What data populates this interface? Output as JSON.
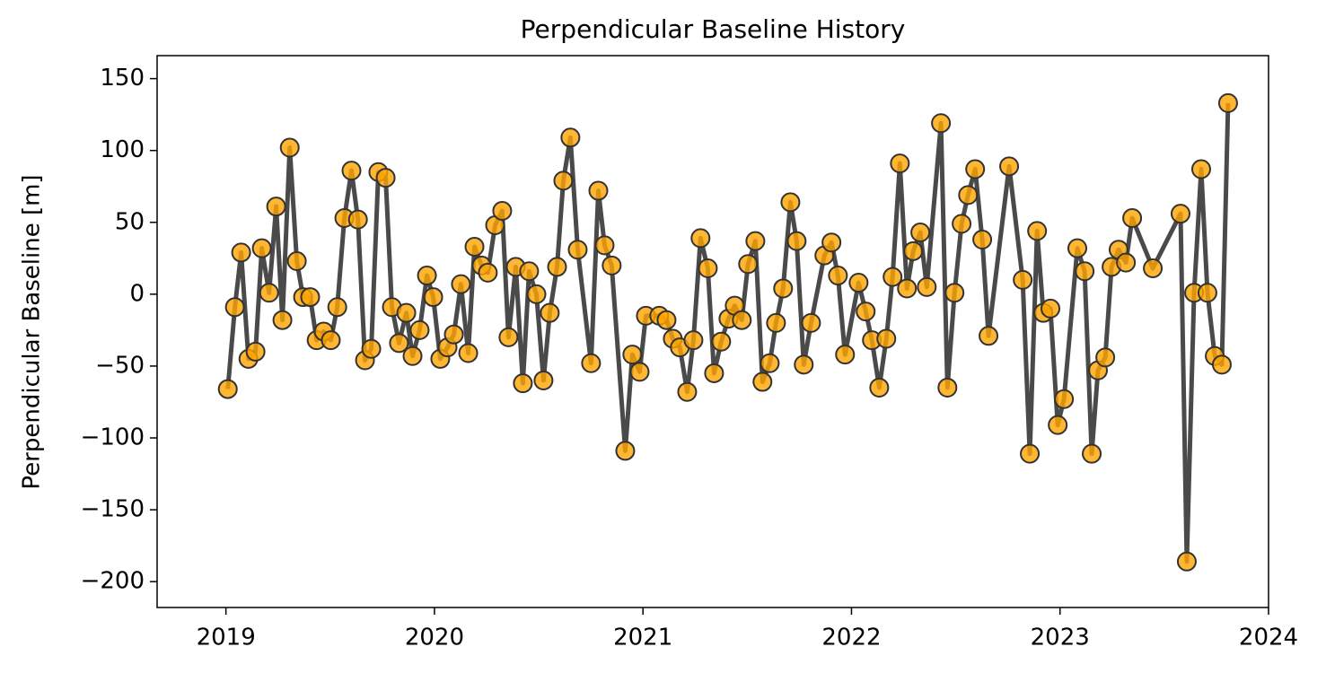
{
  "chart_data": {
    "type": "line",
    "title": "Perpendicular Baseline History",
    "ylabel": "Perpendicular Baseline [m]",
    "color": "#ffa500",
    "line_color": "#404040",
    "xlim": [
      2018.67,
      2024
    ],
    "xticks": [
      2019,
      2020,
      2021,
      2022,
      2023,
      2024
    ],
    "ylim": [
      -218,
      166
    ],
    "yticks": [
      {
        "value": -200,
        "label": "−200"
      },
      {
        "value": -150,
        "label": "−150"
      },
      {
        "value": -100,
        "label": "−100"
      },
      {
        "value": -50,
        "label": "−50"
      },
      0,
      50,
      100,
      150
    ],
    "x": [
      2019.009,
      2019.043,
      2019.073,
      2019.108,
      2019.142,
      2019.172,
      2019.207,
      2019.241,
      2019.271,
      2019.306,
      2019.34,
      2019.37,
      2019.404,
      2019.435,
      2019.469,
      2019.503,
      2019.534,
      2019.568,
      2019.602,
      2019.633,
      2019.667,
      2019.697,
      2019.731,
      2019.766,
      2019.796,
      2019.83,
      2019.865,
      2019.895,
      2019.929,
      2019.964,
      2019.994,
      2020.028,
      2020.063,
      2020.093,
      2020.127,
      2020.162,
      2020.192,
      2020.226,
      2020.256,
      2020.291,
      2020.325,
      2020.355,
      2020.39,
      2020.424,
      2020.454,
      2020.489,
      2020.523,
      2020.553,
      2020.588,
      2020.618,
      2020.652,
      2020.687,
      2020.751,
      2020.786,
      2020.816,
      2020.85,
      2020.915,
      2020.949,
      2020.984,
      2021.014,
      2021.078,
      2021.113,
      2021.143,
      2021.177,
      2021.212,
      2021.242,
      2021.276,
      2021.311,
      2021.341,
      2021.375,
      2021.41,
      2021.44,
      2021.474,
      2021.504,
      2021.539,
      2021.573,
      2021.608,
      2021.638,
      2021.672,
      2021.707,
      2021.737,
      2021.771,
      2021.806,
      2021.87,
      2021.904,
      2021.935,
      2021.969,
      2022.034,
      2022.068,
      2022.098,
      2022.133,
      2022.167,
      2022.197,
      2022.232,
      2022.266,
      2022.296,
      2022.33,
      2022.361,
      2022.429,
      2022.46,
      2022.494,
      2022.528,
      2022.559,
      2022.593,
      2022.627,
      2022.657,
      2022.756,
      2022.821,
      2022.855,
      2022.89,
      2022.92,
      2022.954,
      2022.989,
      2023.019,
      2023.083,
      2023.118,
      2023.152,
      2023.182,
      2023.217,
      2023.247,
      2023.281,
      2023.316,
      2023.346,
      2023.445,
      2023.578,
      2023.608,
      2023.643,
      2023.677,
      2023.707,
      2023.742,
      2023.776,
      2023.806
    ],
    "values": [
      -66,
      -9,
      29,
      -45,
      -40,
      32,
      1,
      61,
      -18,
      102,
      23,
      -2,
      -2,
      -32,
      -26,
      -32,
      -9,
      53,
      86,
      52,
      -46,
      -38,
      85,
      81,
      -9,
      -34,
      -13,
      -43,
      -25,
      13,
      -2,
      -45,
      -37,
      -28,
      7,
      -41,
      33,
      20,
      15,
      48,
      58,
      -30,
      19,
      -62,
      16,
      0,
      -60,
      -13,
      19,
      79,
      109,
      31,
      -48,
      72,
      34,
      20,
      -109,
      -42,
      -54,
      -15,
      -15,
      -18,
      -31,
      -37,
      -68,
      -32,
      39,
      18,
      -55,
      -33,
      -17,
      -8,
      -18,
      21,
      37,
      -61,
      -48,
      -20,
      4,
      64,
      37,
      -49,
      -20,
      27,
      36,
      13,
      -42,
      8,
      -12,
      -32,
      -65,
      -31,
      12,
      91,
      4,
      30,
      43,
      5,
      119,
      -65,
      1,
      49,
      69,
      87,
      38,
      -29,
      89,
      10,
      -111,
      44,
      -13,
      -10,
      -91,
      -73,
      32,
      16,
      -111,
      -53,
      -44,
      19,
      31,
      22,
      53,
      18,
      56,
      -186,
      1,
      87,
      1,
      -43,
      -49,
      133
    ]
  }
}
